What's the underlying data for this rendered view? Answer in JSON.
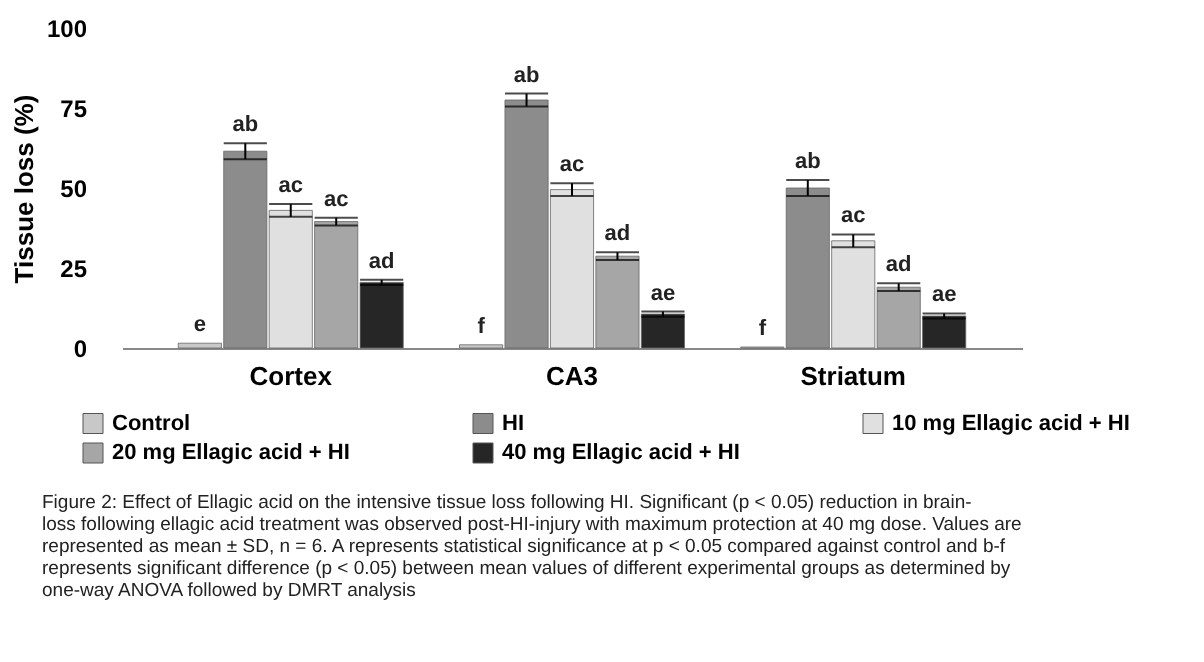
{
  "chart_data": {
    "type": "bar",
    "ylabel": "Tissue loss (%)",
    "categories": [
      "Cortex",
      "CA3",
      "Striatum"
    ],
    "ylim": [
      0,
      100
    ],
    "yticks": [
      0,
      25,
      50,
      75,
      100
    ],
    "grid": false,
    "legend": "bottom",
    "series": [
      {
        "name": "Control",
        "color": "#c8c8c8",
        "values": [
          1.5,
          1,
          0.3
        ],
        "errors": [
          null,
          null,
          null
        ],
        "value_labels": [
          "e",
          "f",
          "f"
        ]
      },
      {
        "name": "HI",
        "color": "#8c8c8c",
        "values": [
          61.5,
          77.5,
          50
        ],
        "errors": [
          2.5,
          2,
          2.5
        ],
        "value_labels": [
          "ab",
          "ab",
          "ab"
        ]
      },
      {
        "name": "10 mg Ellagic acid + HI",
        "color": "#e0e0e0",
        "values": [
          43,
          49.5,
          33.5
        ],
        "errors": [
          2,
          2,
          2
        ],
        "value_labels": [
          "ac",
          "ac",
          "ac"
        ]
      },
      {
        "name": "20 mg Ellagic acid + HI",
        "color": "#a6a6a6",
        "values": [
          39.5,
          28.7,
          19
        ],
        "errors": [
          1.2,
          1.2,
          1.2
        ],
        "value_labels": [
          "ac",
          "ad",
          "ad"
        ]
      },
      {
        "name": "40 mg Ellagic acid + HI",
        "color": "#262626",
        "values": [
          20.5,
          10.6,
          10
        ],
        "errors": [
          0.8,
          0.8,
          0.8
        ],
        "value_labels": [
          "ad",
          "ae",
          "ae"
        ]
      }
    ],
    "annotations": [
      "Figure 2: Effect of Ellagic acid on the intensive tissue loss following HI. Significant (p < 0.05) reduction in brain-loss following ellagic acid treatment was observed post-HI-injury with maximum protection at 40 mg dose. Values are represented as mean ± SD, n = 6. A represents statistical significance at p < 0.05 compared against control and b-f represents significant difference (p < 0.05) between mean values of different experimental groups as determined by one-way ANOVA followed by DMRT analysis"
    ]
  }
}
